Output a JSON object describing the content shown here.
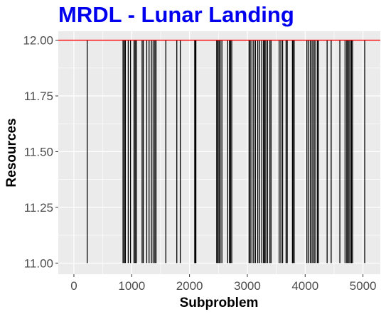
{
  "chart_data": {
    "type": "bar",
    "title": "MRDL - Lunar Landing",
    "xlabel": "Subproblem",
    "ylabel": "Resources",
    "xlim": [
      -270,
      5300
    ],
    "ylim": [
      10.95,
      12.04
    ],
    "x_ticks": [
      0,
      1000,
      2000,
      3000,
      4000,
      5000
    ],
    "x_tick_labels": [
      "0",
      "1000",
      "2000",
      "3000",
      "4000",
      "5000"
    ],
    "y_ticks": [
      11.0,
      11.25,
      11.5,
      11.75,
      12.0
    ],
    "y_tick_labels": [
      "11.00",
      "11.25",
      "11.50",
      "11.75",
      "12.00"
    ],
    "baseline": 11.0,
    "reference_line": {
      "y": 12.0,
      "color": "#ff0000"
    },
    "x": [
      230,
      850,
      870,
      890,
      940,
      980,
      1040,
      1060,
      1080,
      1180,
      1200,
      1260,
      1300,
      1340,
      1370,
      1400,
      1420,
      1590,
      1780,
      1840,
      2090,
      2100,
      2110,
      2470,
      2490,
      2510,
      2530,
      2560,
      2660,
      2690,
      2710,
      2730,
      3030,
      3050,
      3080,
      3110,
      3140,
      3180,
      3210,
      3250,
      3280,
      3300,
      3320,
      3350,
      3390,
      3410,
      3550,
      3580,
      3610,
      3670,
      3690,
      3780,
      3790,
      3810,
      4030,
      4060,
      4090,
      4120,
      4150,
      4170,
      4210,
      4230,
      4380,
      4450,
      4600,
      4690,
      4720,
      4740,
      4760,
      4790,
      4800,
      4820,
      5030
    ],
    "values": [
      12,
      12,
      12,
      12,
      12,
      12,
      12,
      12,
      12,
      12,
      12,
      12,
      12,
      12,
      12,
      12,
      12,
      12,
      12,
      12,
      12,
      12,
      12,
      12,
      12,
      12,
      12,
      12,
      12,
      12,
      12,
      12,
      12,
      12,
      12,
      12,
      12,
      12,
      12,
      12,
      12,
      12,
      12,
      12,
      12,
      12,
      12,
      12,
      12,
      12,
      12,
      12,
      12,
      12,
      12,
      12,
      12,
      12,
      12,
      12,
      12,
      12,
      12,
      12,
      12,
      12,
      12,
      12,
      12,
      12,
      12,
      12,
      12
    ],
    "grid": true,
    "colors": {
      "title": "#0000ee",
      "bars": "#000000",
      "panel": "#ebebeb",
      "grid": "#ffffff"
    }
  }
}
